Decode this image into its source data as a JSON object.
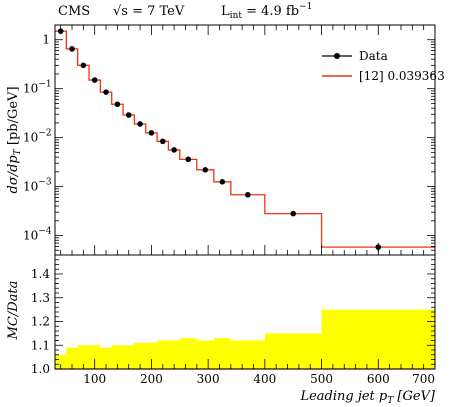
{
  "header": {
    "experiment": "CMS",
    "energy": "√s = 7 TeV",
    "lumi": "L",
    "lumi_sub": "int",
    "lumi_value": " = 4.9 fb",
    "lumi_sup": "−1"
  },
  "colors": {
    "data": "#000000",
    "mc": "#ee3311",
    "ratio_band": "#ffff00",
    "axis": "#000000"
  },
  "chart_data": [
    {
      "type": "step-histogram",
      "panel": "main",
      "ylabel": "dσ/dp_T [pb/GeV]",
      "ylabel_parts": {
        "main": "dσ/dp",
        "sub": "T",
        "unit": " [pb/GeV]"
      },
      "yscale": "log",
      "ylim": [
        4e-05,
        2.0
      ],
      "xlim": [
        30,
        700
      ],
      "yticks": [
        {
          "value": 1,
          "label": "1",
          "sup": ""
        },
        {
          "value": 0.1,
          "label": "10",
          "sup": "−1"
        },
        {
          "value": 0.01,
          "label": "10",
          "sup": "−2"
        },
        {
          "value": 0.001,
          "label": "10",
          "sup": "−3"
        },
        {
          "value": 0.0001,
          "label": "10",
          "sup": "−4"
        }
      ],
      "bin_edges": [
        30,
        50,
        70,
        90,
        110,
        130,
        150,
        170,
        190,
        210,
        230,
        250,
        280,
        310,
        340,
        400,
        500,
        700
      ],
      "series": [
        {
          "name": "Data",
          "kind": "points",
          "x": [
            40,
            60,
            80,
            100,
            120,
            140,
            160,
            180,
            200,
            220,
            240,
            265,
            295,
            325,
            370,
            450,
            600
          ],
          "y": [
            1.5,
            0.65,
            0.3,
            0.15,
            0.085,
            0.048,
            0.029,
            0.019,
            0.0125,
            0.0084,
            0.0056,
            0.0036,
            0.0022,
            0.00125,
            0.00068,
            0.00028,
            5.8e-05
          ],
          "yerr": [
            0,
            0,
            0,
            0,
            0,
            0,
            0,
            0,
            0,
            0,
            0,
            0,
            0,
            0,
            0,
            2e-05,
            1.2e-05
          ]
        },
        {
          "name": "[12] 0.039363",
          "kind": "step",
          "values": [
            1.5,
            0.65,
            0.3,
            0.15,
            0.085,
            0.048,
            0.029,
            0.019,
            0.0125,
            0.0084,
            0.0056,
            0.0036,
            0.0022,
            0.00125,
            0.00068,
            0.00028,
            5.8e-05
          ]
        }
      ],
      "legend": {
        "position": "top-right",
        "entries": [
          {
            "label": "Data",
            "kind": "points"
          },
          {
            "label": "[12] 0.039363",
            "kind": "line"
          }
        ]
      }
    },
    {
      "type": "band",
      "panel": "ratio",
      "ylabel": "MC/Data",
      "xlabel": "Leading jet p_T [GeV]",
      "xlabel_parts": {
        "main": "Leading jet ",
        "var": "p",
        "sub": "T",
        "unit": " [GeV]"
      },
      "xlim": [
        30,
        700
      ],
      "ylim": [
        1.0,
        1.48
      ],
      "yticks": [
        1.0,
        1.1,
        1.2,
        1.3,
        1.4
      ],
      "ytick_labels": [
        "1.0",
        "1.1",
        "1.2",
        "1.3",
        "1.4"
      ],
      "xticks": [
        100,
        200,
        300,
        400,
        500,
        600,
        700
      ],
      "xtick_labels": [
        "100",
        "200",
        "300",
        "400",
        "500",
        "600",
        "700"
      ],
      "bin_edges": [
        30,
        50,
        70,
        90,
        110,
        130,
        150,
        170,
        190,
        210,
        230,
        250,
        280,
        310,
        340,
        400,
        500,
        700
      ],
      "band_upper": [
        1.06,
        1.09,
        1.1,
        1.1,
        1.09,
        1.1,
        1.1,
        1.11,
        1.11,
        1.12,
        1.12,
        1.13,
        1.12,
        1.13,
        1.12,
        1.15,
        1.25
      ],
      "band_lower": [
        1.0,
        1.0,
        1.0,
        1.0,
        1.0,
        1.0,
        1.0,
        1.0,
        1.0,
        1.0,
        1.0,
        1.0,
        1.0,
        1.0,
        1.0,
        1.0,
        1.0
      ],
      "mc_line": [
        1.0,
        1.0,
        1.0,
        1.0,
        1.0,
        1.0,
        1.0,
        1.0,
        1.0,
        1.0,
        1.0,
        1.0,
        1.0,
        1.0,
        1.0,
        1.0,
        1.0
      ]
    }
  ]
}
